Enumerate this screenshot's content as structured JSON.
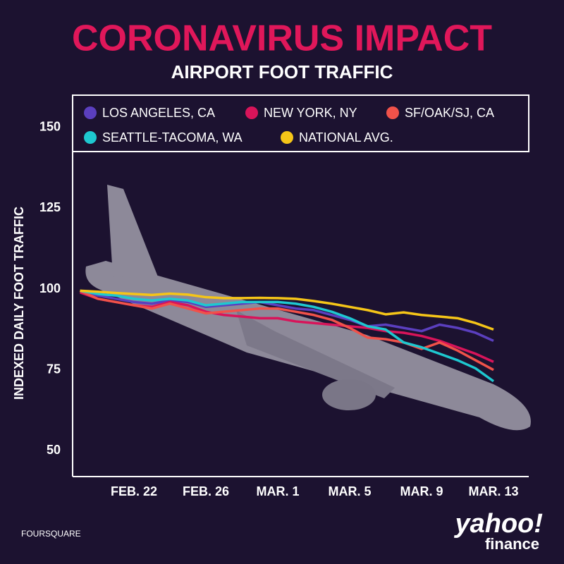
{
  "chart_data": {
    "type": "line",
    "title": "CORONAVIRUS IMPACT",
    "subtitle": "AIRPORT FOOT TRAFFIC",
    "y_label": "INDEXED DAILY FOOT TRAFFIC",
    "source": "FOURSQUARE",
    "logo": [
      "yahoo!",
      "finance"
    ],
    "categories": [
      null,
      null,
      null,
      "FEB. 22",
      null,
      null,
      null,
      "FEB. 26",
      null,
      null,
      null,
      "MAR. 1",
      null,
      null,
      null,
      "MAR. 5",
      null,
      null,
      null,
      "MAR. 9",
      null,
      null,
      null,
      "MAR. 13"
    ],
    "ylim": [
      42,
      160
    ],
    "yticks": [
      50,
      75,
      100,
      125,
      150
    ],
    "grid": false,
    "legend": "top",
    "series": [
      {
        "name": "LOS ANGELES, CA",
        "color": "#5b3fbf",
        "values": [
          99.5,
          98,
          97,
          96,
          95.5,
          96.5,
          96,
          94.5,
          95,
          95.5,
          96,
          95,
          94,
          93.5,
          92,
          90.5,
          88.5,
          89,
          88,
          87,
          89,
          88,
          86.5,
          84
        ]
      },
      {
        "name": "NEW YORK, NY",
        "color": "#d8145a",
        "values": [
          99,
          97,
          96,
          95,
          94.5,
          96,
          95,
          93,
          92,
          91.5,
          91,
          91,
          90,
          89.5,
          89,
          88.5,
          88,
          87,
          86.5,
          85.5,
          84,
          82,
          80,
          77.5
        ]
      },
      {
        "name": "SF/OAK/SJ, CA",
        "color": "#f0524a",
        "values": [
          99.5,
          97,
          96,
          95,
          94,
          95.5,
          94,
          92.5,
          93,
          93.5,
          94,
          94,
          93,
          92,
          90.5,
          88,
          85,
          84.5,
          83.5,
          81.5,
          83.5,
          81,
          78,
          75
        ]
      },
      {
        "name": "SEATTLE-TACOMA, WA",
        "color": "#1ec8d0",
        "values": [
          99.5,
          98.5,
          98,
          97,
          96.5,
          97,
          96.5,
          95,
          95.5,
          96,
          96,
          96,
          95.5,
          94.5,
          93,
          91,
          88.5,
          87.5,
          83.5,
          82,
          80,
          78,
          75.5,
          71.5
        ]
      },
      {
        "name": "NATIONAL AVG.",
        "color": "#f5c518",
        "values": [
          99.5,
          99.2,
          98.8,
          98.5,
          98.2,
          98.6,
          98.3,
          97.5,
          97.2,
          97.2,
          97.3,
          97.2,
          97,
          96.3,
          95.5,
          94.5,
          93.5,
          92.2,
          92.8,
          92,
          91.5,
          91,
          89.5,
          87.5
        ]
      }
    ]
  }
}
